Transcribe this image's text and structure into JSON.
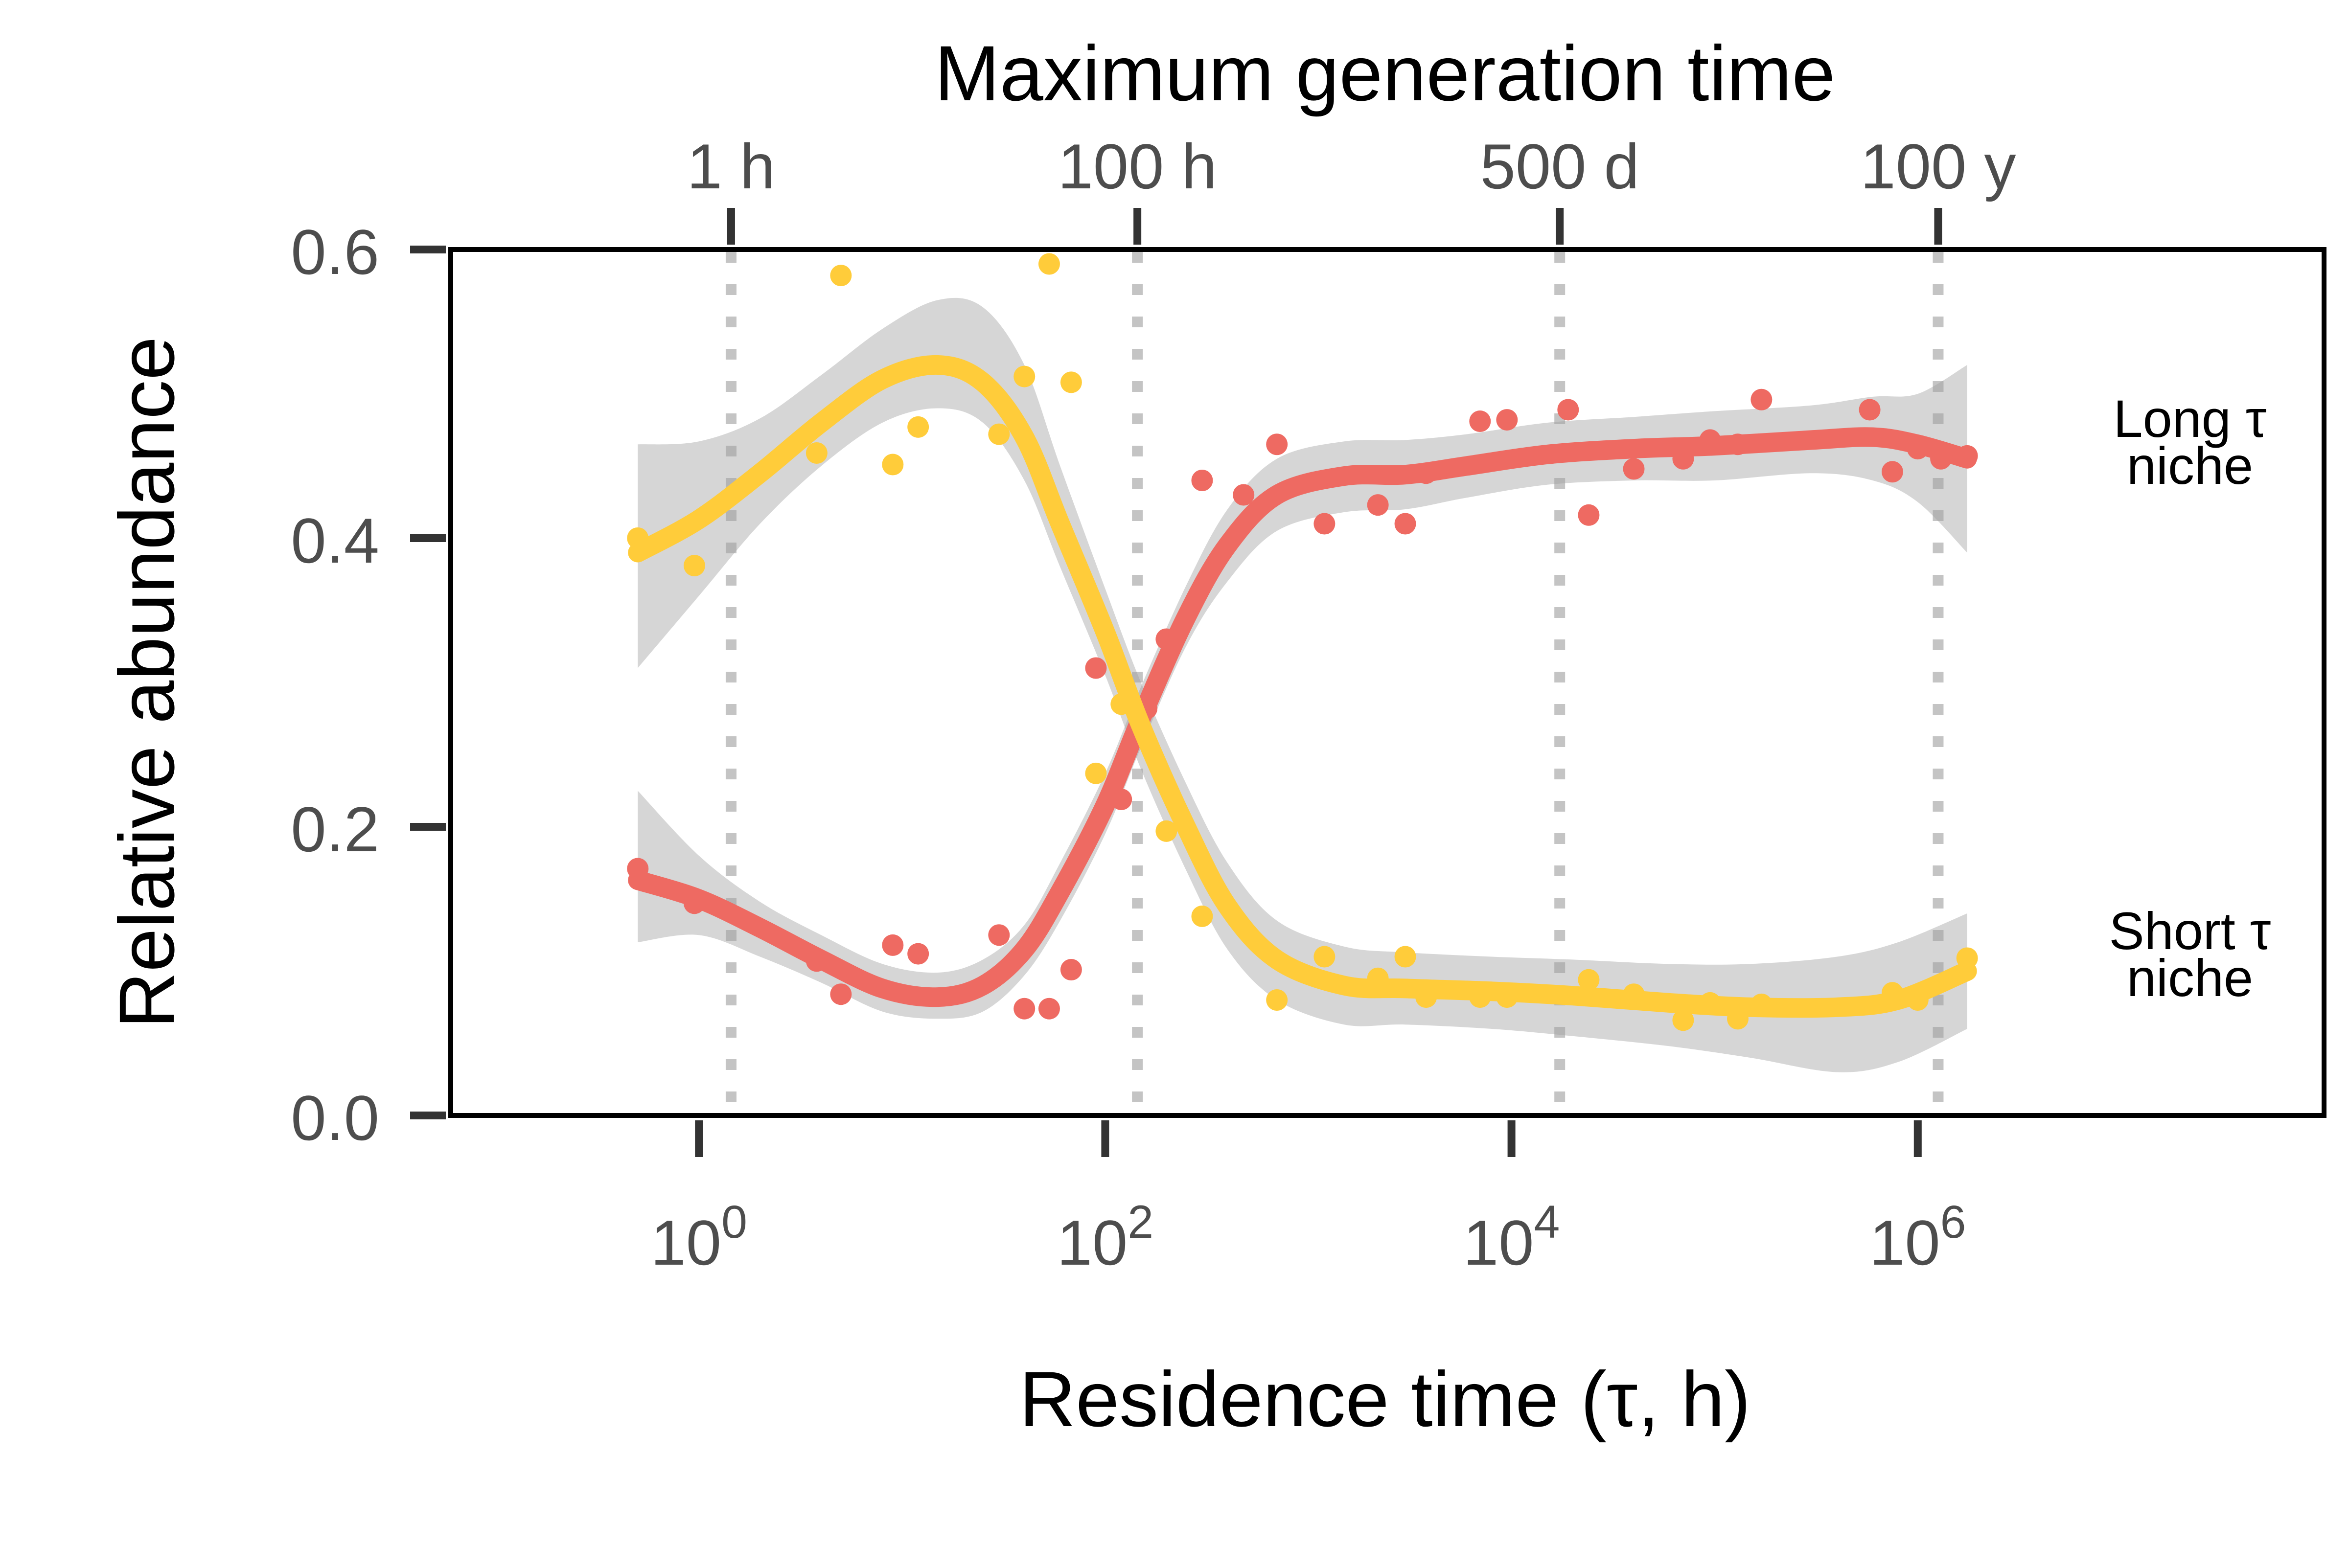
{
  "chart_data": {
    "type": "scatter",
    "xlabel": "Residence time (τ, h)",
    "ylabel": "Relative abundance",
    "top_axis_title": "Maximum generation time",
    "x_scale": "log10",
    "xlim": [
      0.06,
      100000000
    ],
    "ylim": [
      0.0,
      0.6
    ],
    "grid": "dotted vertical reference lines at the top-axis ticks",
    "y_ticks": [
      {
        "value": 0.0,
        "label": "0.0"
      },
      {
        "value": 0.2,
        "label": "0.2"
      },
      {
        "value": 0.4,
        "label": "0.4"
      },
      {
        "value": 0.6,
        "label": "0.6"
      }
    ],
    "x_ticks": [
      {
        "value": 1,
        "base": "10",
        "exp": "0"
      },
      {
        "value": 100,
        "base": "10",
        "exp": "2"
      },
      {
        "value": 10000,
        "base": "10",
        "exp": "4"
      },
      {
        "value": 1000000,
        "base": "10",
        "exp": "6"
      }
    ],
    "top_ticks": [
      {
        "value": 1.44,
        "label": "1 h"
      },
      {
        "value": 144,
        "label": "100 h"
      },
      {
        "value": 17280,
        "label": "500 d"
      },
      {
        "value": 1260000,
        "label": "100 y"
      }
    ],
    "series": [
      {
        "name": "Long τ niche",
        "label_lines": [
          "Long τ",
          "niche"
        ],
        "color": "#EE6A62",
        "points": [
          [
            0.5,
            0.171
          ],
          [
            0.95,
            0.147
          ],
          [
            3.8,
            0.107
          ],
          [
            5,
            0.084
          ],
          [
            9,
            0.118
          ],
          [
            12,
            0.112
          ],
          [
            30,
            0.125
          ],
          [
            40,
            0.074
          ],
          [
            53,
            0.074
          ],
          [
            68,
            0.101
          ],
          [
            90,
            0.31
          ],
          [
            120,
            0.219
          ],
          [
            160,
            0.282
          ],
          [
            200,
            0.33
          ],
          [
            300,
            0.44
          ],
          [
            480,
            0.43
          ],
          [
            700,
            0.465
          ],
          [
            1200,
            0.41
          ],
          [
            2200,
            0.423
          ],
          [
            3000,
            0.41
          ],
          [
            3800,
            0.445
          ],
          [
            7000,
            0.481
          ],
          [
            9500,
            0.482
          ],
          [
            19000,
            0.489
          ],
          [
            24000,
            0.416
          ],
          [
            40000,
            0.448
          ],
          [
            70000,
            0.455
          ],
          [
            95000,
            0.468
          ],
          [
            130000,
            0.465
          ],
          [
            170000,
            0.496
          ],
          [
            580000,
            0.489
          ],
          [
            750000,
            0.446
          ],
          [
            1000000,
            0.462
          ],
          [
            1300000,
            0.455
          ],
          [
            1750000,
            0.457
          ]
        ],
        "fit": [
          [
            0.5,
            0.163
          ],
          [
            1,
            0.15
          ],
          [
            2,
            0.13
          ],
          [
            4,
            0.108
          ],
          [
            8,
            0.088
          ],
          [
            15,
            0.082
          ],
          [
            25,
            0.09
          ],
          [
            40,
            0.115
          ],
          [
            60,
            0.155
          ],
          [
            100,
            0.215
          ],
          [
            150,
            0.275
          ],
          [
            250,
            0.345
          ],
          [
            400,
            0.395
          ],
          [
            700,
            0.43
          ],
          [
            1500,
            0.443
          ],
          [
            3000,
            0.444
          ],
          [
            6000,
            0.45
          ],
          [
            15000,
            0.458
          ],
          [
            40000,
            0.462
          ],
          [
            100000,
            0.464
          ],
          [
            300000,
            0.468
          ],
          [
            600000,
            0.47
          ],
          [
            1000000,
            0.465
          ],
          [
            1750000,
            0.455
          ]
        ],
        "ci_lower": [
          [
            0.5,
            0.12
          ],
          [
            1,
            0.125
          ],
          [
            2,
            0.11
          ],
          [
            4,
            0.092
          ],
          [
            8,
            0.072
          ],
          [
            15,
            0.067
          ],
          [
            25,
            0.072
          ],
          [
            40,
            0.097
          ],
          [
            60,
            0.135
          ],
          [
            100,
            0.195
          ],
          [
            150,
            0.255
          ],
          [
            250,
            0.325
          ],
          [
            400,
            0.37
          ],
          [
            700,
            0.405
          ],
          [
            1500,
            0.418
          ],
          [
            3000,
            0.42
          ],
          [
            6000,
            0.428
          ],
          [
            15000,
            0.437
          ],
          [
            40000,
            0.44
          ],
          [
            100000,
            0.44
          ],
          [
            300000,
            0.445
          ],
          [
            600000,
            0.44
          ],
          [
            1000000,
            0.425
          ],
          [
            1750000,
            0.39
          ]
        ],
        "ci_upper": [
          [
            0.5,
            0.225
          ],
          [
            1,
            0.18
          ],
          [
            2,
            0.148
          ],
          [
            4,
            0.125
          ],
          [
            8,
            0.105
          ],
          [
            15,
            0.099
          ],
          [
            25,
            0.108
          ],
          [
            40,
            0.132
          ],
          [
            60,
            0.175
          ],
          [
            100,
            0.237
          ],
          [
            150,
            0.297
          ],
          [
            250,
            0.367
          ],
          [
            400,
            0.42
          ],
          [
            700,
            0.455
          ],
          [
            1500,
            0.467
          ],
          [
            3000,
            0.468
          ],
          [
            6000,
            0.472
          ],
          [
            15000,
            0.48
          ],
          [
            40000,
            0.484
          ],
          [
            100000,
            0.488
          ],
          [
            300000,
            0.492
          ],
          [
            600000,
            0.498
          ],
          [
            1000000,
            0.5
          ],
          [
            1750000,
            0.52
          ]
        ]
      },
      {
        "name": "Short τ niche",
        "label_lines": [
          "Short τ",
          "niche"
        ],
        "color": "#FFCC3A",
        "points": [
          [
            0.5,
            0.4
          ],
          [
            0.95,
            0.381
          ],
          [
            3.8,
            0.459
          ],
          [
            5,
            0.582
          ],
          [
            9,
            0.451
          ],
          [
            12,
            0.477
          ],
          [
            30,
            0.472
          ],
          [
            40,
            0.512
          ],
          [
            53,
            0.59
          ],
          [
            68,
            0.508
          ],
          [
            90,
            0.237
          ],
          [
            120,
            0.285
          ],
          [
            200,
            0.197
          ],
          [
            300,
            0.138
          ],
          [
            700,
            0.08
          ],
          [
            1200,
            0.11
          ],
          [
            2200,
            0.095
          ],
          [
            3000,
            0.11
          ],
          [
            3800,
            0.082
          ],
          [
            7000,
            0.082
          ],
          [
            9500,
            0.082
          ],
          [
            24000,
            0.094
          ],
          [
            40000,
            0.084
          ],
          [
            70000,
            0.066
          ],
          [
            95000,
            0.078
          ],
          [
            130000,
            0.067
          ],
          [
            170000,
            0.077
          ],
          [
            750000,
            0.085
          ],
          [
            1000000,
            0.08
          ],
          [
            1750000,
            0.109
          ]
        ],
        "fit": [
          [
            0.5,
            0.39
          ],
          [
            1,
            0.413
          ],
          [
            2,
            0.445
          ],
          [
            4,
            0.48
          ],
          [
            8,
            0.51
          ],
          [
            15,
            0.52
          ],
          [
            25,
            0.508
          ],
          [
            40,
            0.47
          ],
          [
            60,
            0.41
          ],
          [
            100,
            0.335
          ],
          [
            150,
            0.27
          ],
          [
            250,
            0.2
          ],
          [
            400,
            0.145
          ],
          [
            700,
            0.108
          ],
          [
            1500,
            0.09
          ],
          [
            3000,
            0.088
          ],
          [
            8000,
            0.086
          ],
          [
            20000,
            0.083
          ],
          [
            60000,
            0.078
          ],
          [
            150000,
            0.075
          ],
          [
            400000,
            0.075
          ],
          [
            800000,
            0.08
          ],
          [
            1750000,
            0.1
          ]
        ],
        "ci_lower": [
          [
            0.5,
            0.31
          ],
          [
            1,
            0.36
          ],
          [
            2,
            0.41
          ],
          [
            4,
            0.45
          ],
          [
            8,
            0.48
          ],
          [
            15,
            0.49
          ],
          [
            25,
            0.48
          ],
          [
            40,
            0.44
          ],
          [
            60,
            0.38
          ],
          [
            100,
            0.305
          ],
          [
            150,
            0.24
          ],
          [
            250,
            0.17
          ],
          [
            400,
            0.115
          ],
          [
            700,
            0.08
          ],
          [
            1500,
            0.063
          ],
          [
            3000,
            0.063
          ],
          [
            8000,
            0.06
          ],
          [
            20000,
            0.055
          ],
          [
            60000,
            0.048
          ],
          [
            150000,
            0.04
          ],
          [
            400000,
            0.03
          ],
          [
            800000,
            0.037
          ],
          [
            1750000,
            0.06
          ]
        ],
        "ci_upper": [
          [
            0.5,
            0.465
          ],
          [
            1,
            0.467
          ],
          [
            2,
            0.483
          ],
          [
            4,
            0.513
          ],
          [
            8,
            0.545
          ],
          [
            15,
            0.565
          ],
          [
            25,
            0.56
          ],
          [
            40,
            0.52
          ],
          [
            60,
            0.45
          ],
          [
            100,
            0.365
          ],
          [
            150,
            0.3
          ],
          [
            250,
            0.23
          ],
          [
            400,
            0.175
          ],
          [
            700,
            0.135
          ],
          [
            1500,
            0.117
          ],
          [
            3000,
            0.113
          ],
          [
            8000,
            0.11
          ],
          [
            20000,
            0.108
          ],
          [
            60000,
            0.105
          ],
          [
            150000,
            0.105
          ],
          [
            400000,
            0.11
          ],
          [
            800000,
            0.12
          ],
          [
            1750000,
            0.14
          ]
        ]
      }
    ]
  }
}
